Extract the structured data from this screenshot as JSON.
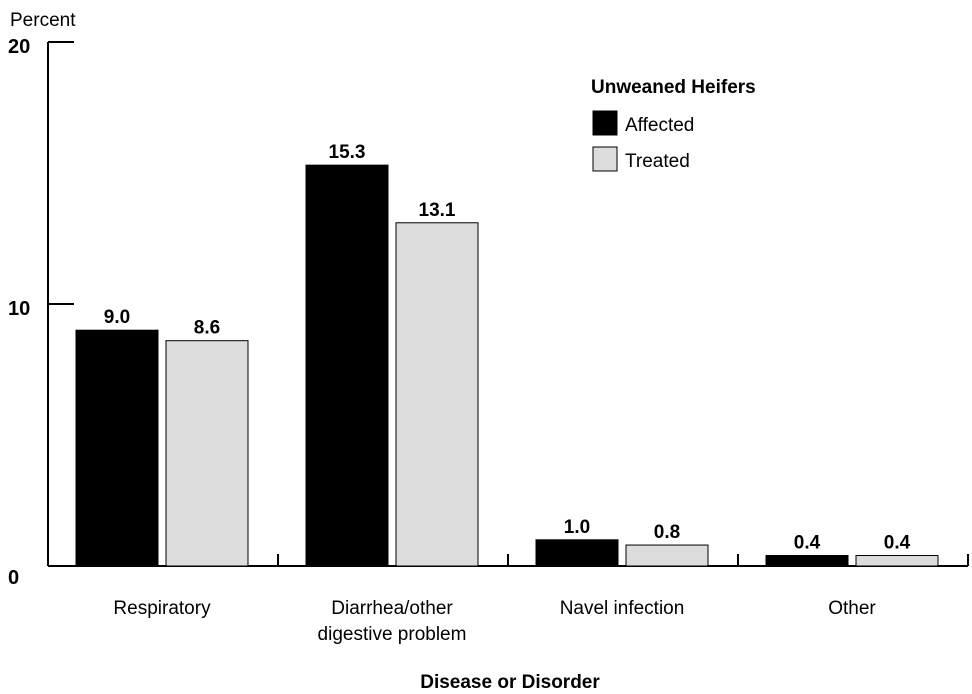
{
  "chart_data": {
    "type": "bar",
    "ylabel": "Percent",
    "xlabel": "Disease or Disorder",
    "ylim": [
      0,
      20
    ],
    "yticks": [
      0,
      10,
      20
    ],
    "categories": [
      [
        "Respiratory"
      ],
      [
        "Diarrhea/other",
        "digestive problem"
      ],
      [
        "Navel infection"
      ],
      [
        "Other"
      ]
    ],
    "legend_title": "Unweaned Heifers",
    "legend_position": "top-right",
    "grid": false,
    "series": [
      {
        "name": "Affected",
        "color": "#000000",
        "values": [
          9.0,
          15.3,
          1.0,
          0.4
        ],
        "labels": [
          "9.0",
          "15.3",
          "1.0",
          "0.4"
        ]
      },
      {
        "name": "Treated",
        "color": "#dcdcdc",
        "values": [
          8.6,
          13.1,
          0.8,
          0.4
        ],
        "labels": [
          "8.6",
          "13.1",
          "0.8",
          "0.4"
        ]
      }
    ]
  }
}
